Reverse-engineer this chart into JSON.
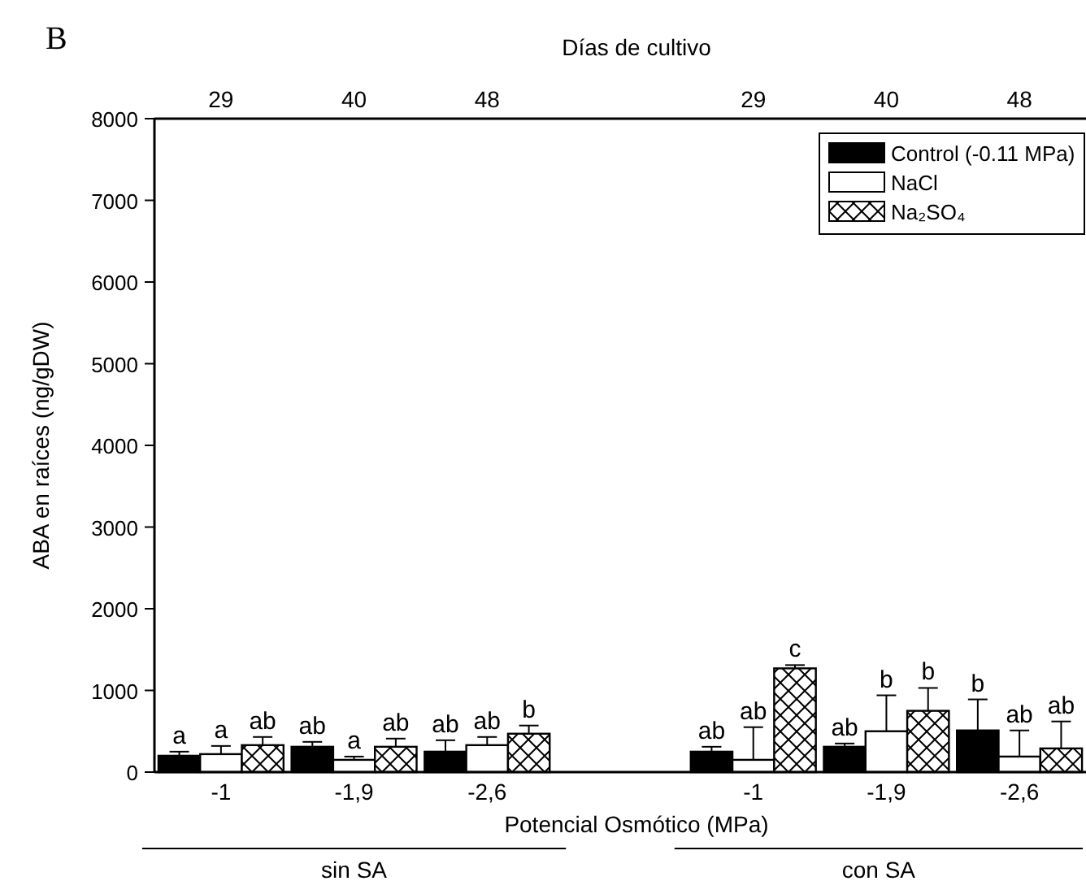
{
  "chart_data": {
    "type": "bar",
    "title": "B",
    "xlabel": "Potencial Osmótico (MPa)",
    "ylabel": "ABA en raíces (ng/gDW)",
    "x2label": "Días de cultivo",
    "categories": [
      "-1",
      "-1,9",
      "-2,6",
      null,
      "-1",
      "-1,9",
      "-2,6"
    ],
    "series": [
      {
        "name": "Control (-0.11 MPa)",
        "color": "#000000",
        "values": [
          200,
          310,
          250,
          null,
          250,
          310,
          510
        ],
        "errors": [
          [
            200,
            250
          ],
          [
            310,
            370
          ],
          [
            250,
            390
          ],
          null,
          [
            250,
            310
          ],
          [
            310,
            350
          ],
          [
            510,
            890
          ]
        ],
        "value_labels": [
          "a",
          "ab",
          "ab",
          null,
          "ab",
          "ab",
          "b"
        ]
      },
      {
        "name": "NaCl",
        "color": "#ffffff",
        "values": [
          220,
          150,
          330,
          null,
          150,
          500,
          190
        ],
        "errors": [
          [
            220,
            320
          ],
          [
            150,
            190
          ],
          [
            330,
            430
          ],
          null,
          [
            150,
            550
          ],
          [
            500,
            940
          ],
          [
            190,
            510
          ]
        ],
        "value_labels": [
          "a",
          "a",
          "ab",
          null,
          "ab",
          "b",
          "ab"
        ]
      },
      {
        "name": "Na₂SO₄",
        "color": "#000000",
        "values": [
          330,
          310,
          470,
          null,
          1270,
          750,
          290
        ],
        "errors": [
          [
            330,
            430
          ],
          [
            310,
            410
          ],
          [
            470,
            570
          ],
          null,
          [
            1270,
            1310
          ],
          [
            750,
            1030
          ],
          [
            290,
            620
          ]
        ],
        "value_labels": [
          "ab",
          "ab",
          "b",
          null,
          "c",
          "b",
          "ab"
        ]
      }
    ],
    "annotations": [
      "29",
      "40",
      "48",
      "29",
      "40",
      "48",
      "sin SA",
      "con SA"
    ],
    "ylim": [
      0,
      8000
    ],
    "yticks": [
      0,
      1000,
      2000,
      3000,
      4000,
      5000,
      6000,
      7000,
      8000
    ],
    "grid": false,
    "legend": "top right"
  }
}
